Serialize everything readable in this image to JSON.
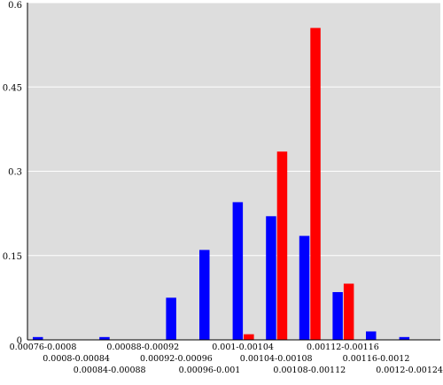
{
  "chart_data": {
    "type": "bar",
    "title": "",
    "xlabel": "",
    "ylabel": "",
    "ylim": [
      0,
      0.6
    ],
    "yticks": [
      0,
      0.15,
      0.3,
      0.45,
      0.6
    ],
    "ytick_labels": [
      "0",
      "0.15",
      "0.3",
      "0.45",
      "0.6"
    ],
    "grid": true,
    "legend": "none",
    "categories": [
      "0.00076-0.0008",
      "0.0008-0.00084",
      "0.00084-0.00088",
      "0.00088-0.00092",
      "0.00092-0.00096",
      "0.00096-0.001",
      "0.001-0.00104",
      "0.00104-0.00108",
      "0.00108-0.00112",
      "0.00112-0.00116",
      "0.00116-0.0012",
      "0.0012-0.00124"
    ],
    "series": [
      {
        "color": "#0000ff",
        "values": [
          0.005,
          0.0,
          0.005,
          0.0,
          0.075,
          0.16,
          0.245,
          0.22,
          0.185,
          0.085,
          0.015,
          0.005
        ]
      },
      {
        "color": "#ff0000",
        "values": [
          0.0,
          0.0,
          0.0,
          0.0,
          0.0,
          0.0,
          0.01,
          0.335,
          0.555,
          0.1,
          0.0,
          0.0
        ]
      }
    ],
    "colors": {
      "plot_background": "#dddddd",
      "gridline": "#ffffff",
      "axis": "#000000"
    }
  }
}
